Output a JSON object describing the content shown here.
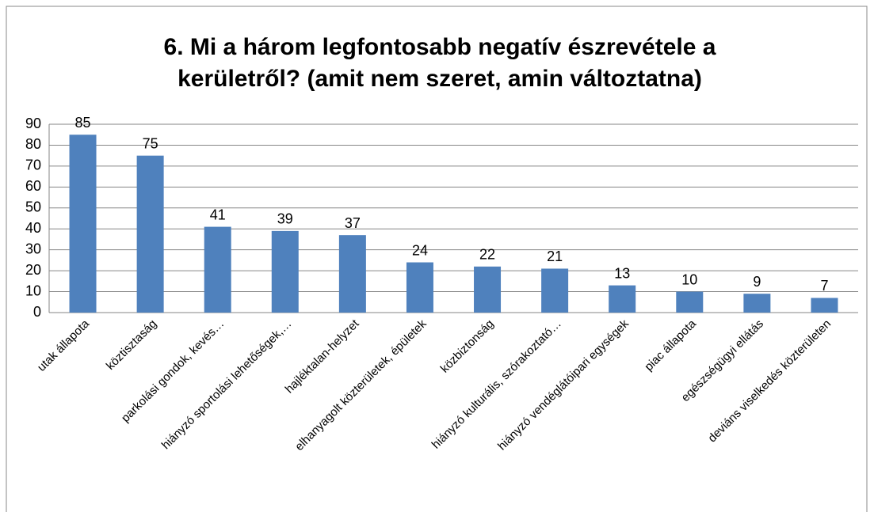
{
  "chart_data": {
    "type": "bar",
    "title": "6. Mi a három legfontosabb negatív észrevétele a kerületről? (amit nem szeret, amin változtatna)",
    "categories": [
      "utak állapota",
      "köztisztaság",
      "parkolási gondok, kevés…",
      "hiányzó sportolási lehetőségek,…",
      "hajléktalan-helyzet",
      "elhanyagolt közterületek, épületek",
      "közbiztonság",
      "hiányzó kulturális, szórakoztató…",
      "hiányzó vendéglátóipari egységek",
      "piac állapota",
      "egészségügyi ellátás",
      "deviáns viselkedés közterületen"
    ],
    "values": [
      85,
      75,
      41,
      39,
      37,
      24,
      22,
      21,
      13,
      10,
      9,
      7
    ],
    "color": "#4f81bd",
    "ylim": [
      0,
      90
    ],
    "yticks": [
      0,
      10,
      20,
      30,
      40,
      50,
      60,
      70,
      80,
      90
    ],
    "grid": true
  }
}
